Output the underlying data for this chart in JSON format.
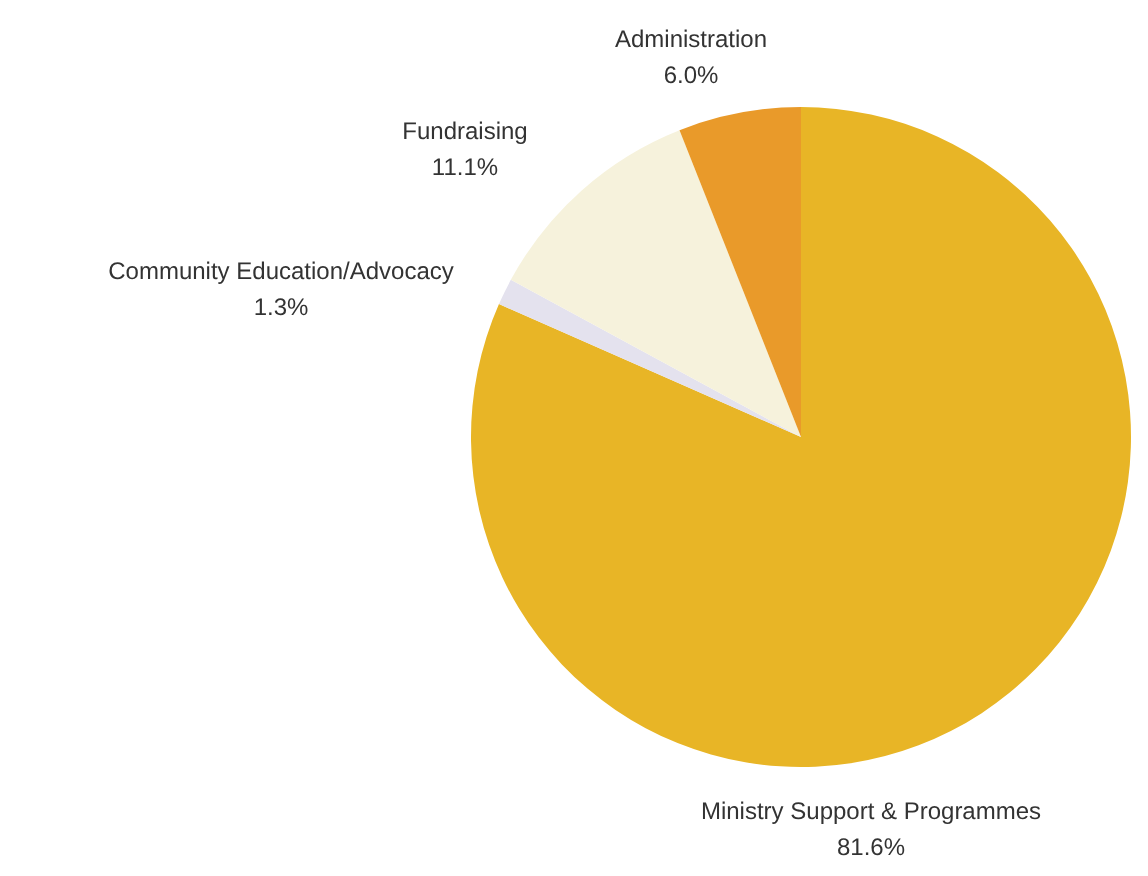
{
  "chart_data": {
    "type": "pie",
    "categories": [
      "Ministry Support & Programmes",
      "Community Education/Advocacy",
      "Fundraising",
      "Administration"
    ],
    "values": [
      81.6,
      1.3,
      11.1,
      6.0
    ],
    "value_labels": [
      "81.6%",
      "1.3%",
      "11.1%",
      "6.0%"
    ],
    "colors": [
      "#e8b526",
      "#e4e2ee",
      "#f6f2dc",
      "#e99a2a"
    ]
  }
}
